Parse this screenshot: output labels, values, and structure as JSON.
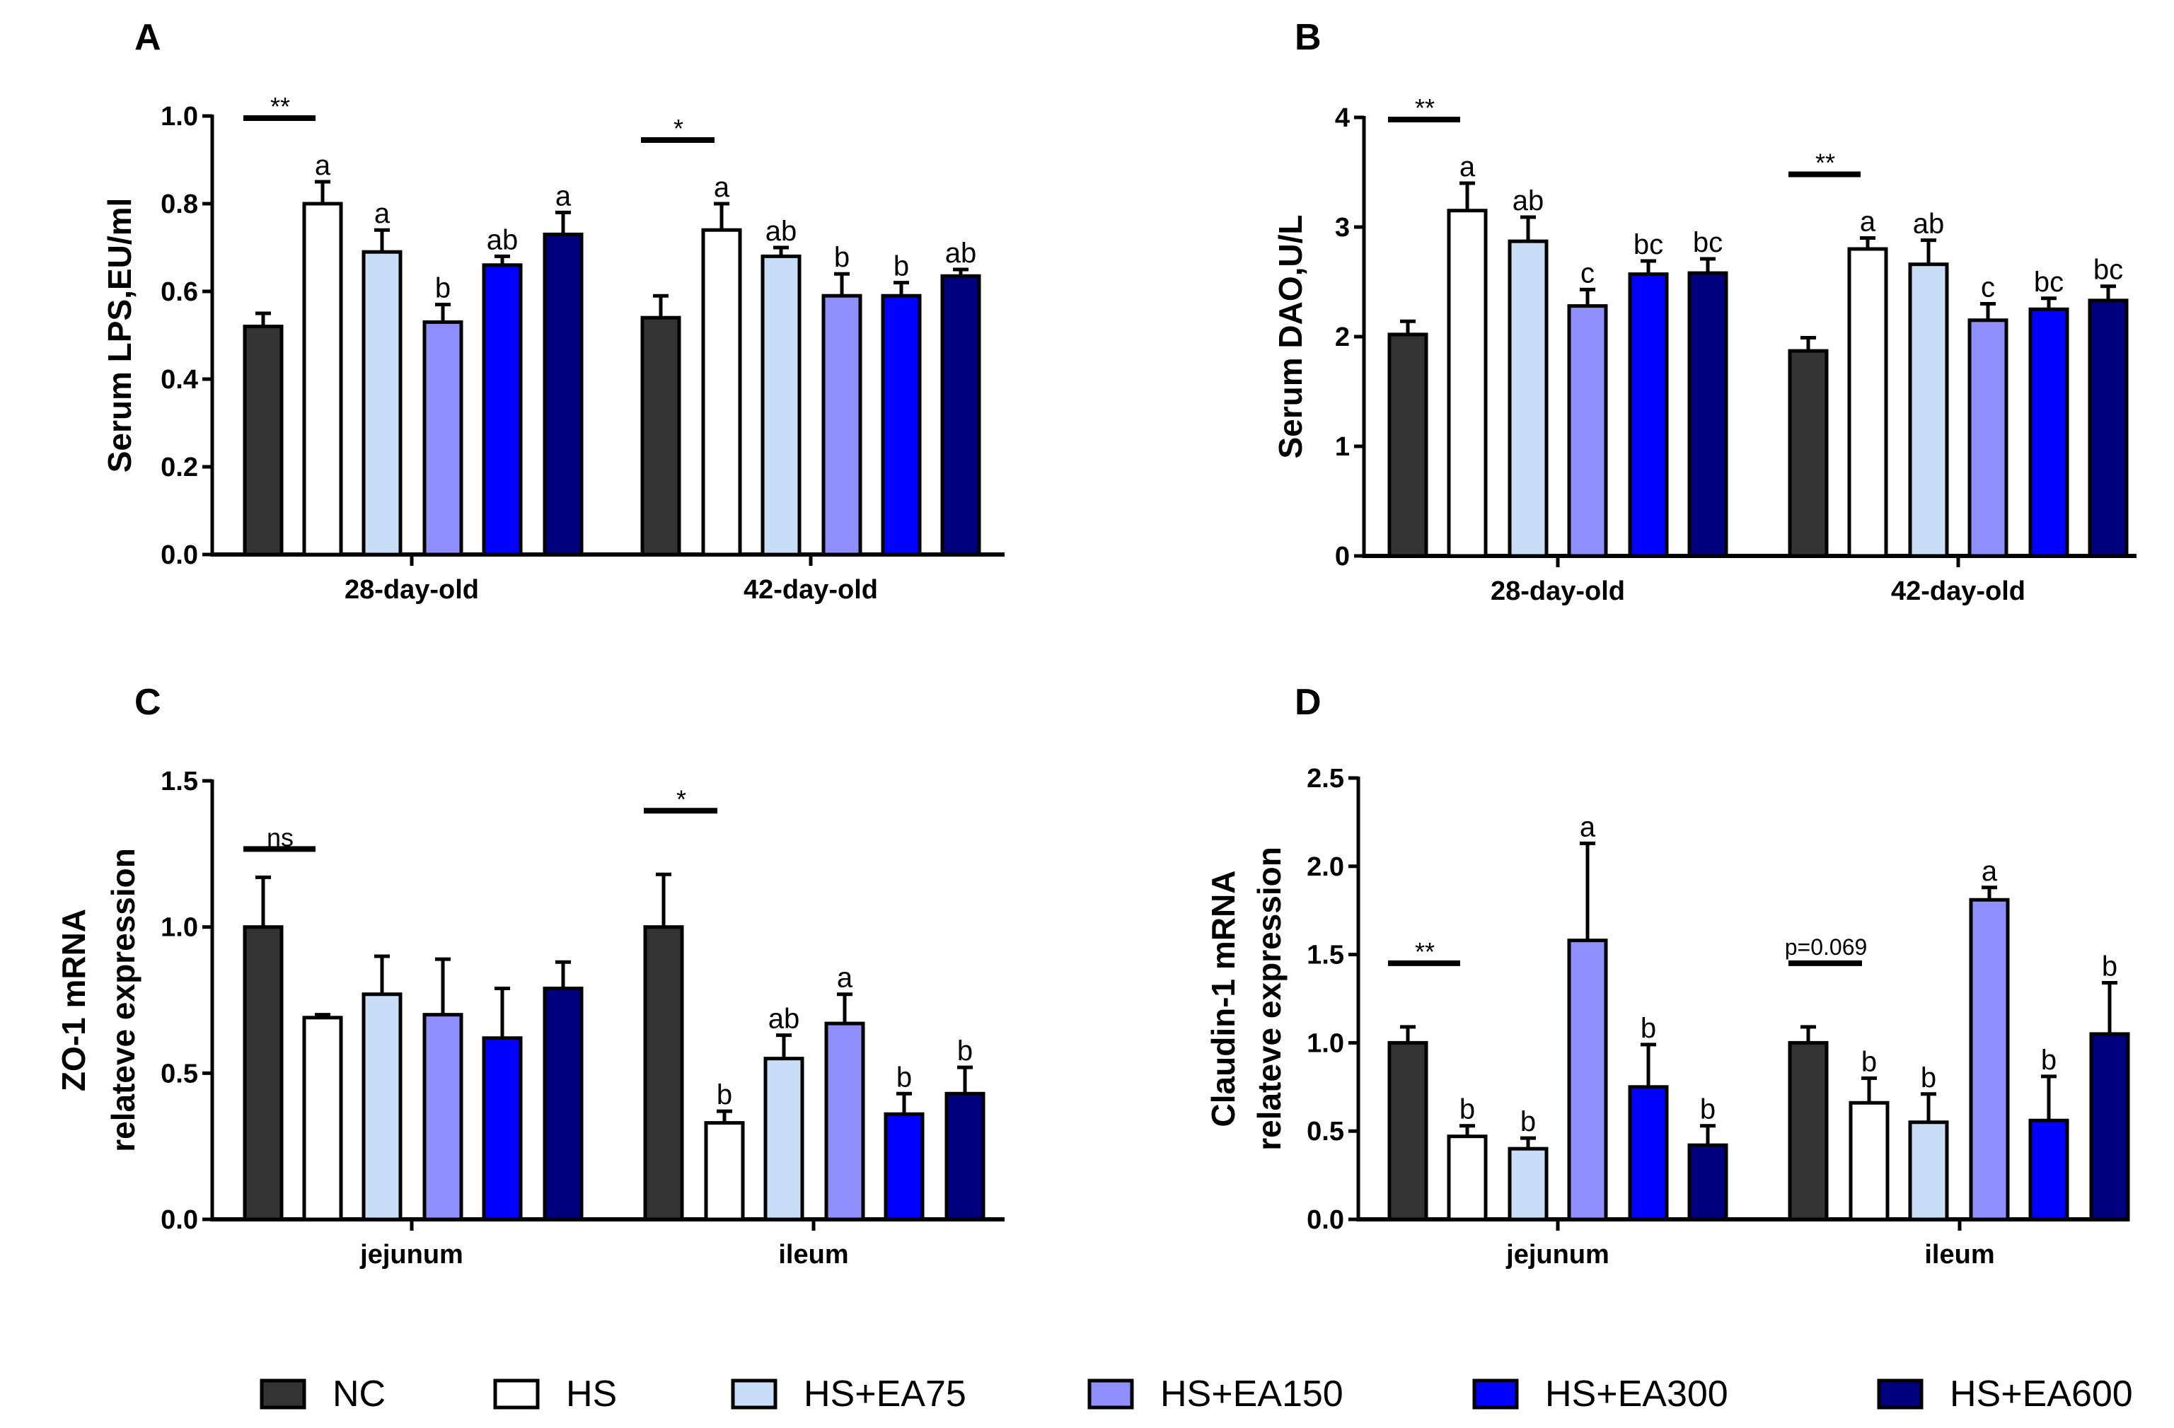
{
  "legend": [
    {
      "name": "NC",
      "color": "#333333"
    },
    {
      "name": "HS",
      "color": "#ffffff"
    },
    {
      "name": "HS+EA75",
      "color": "#c9ddf7"
    },
    {
      "name": "HS+EA150",
      "color": "#8f8ffe"
    },
    {
      "name": "HS+EA300",
      "color": "#0000ff"
    },
    {
      "name": "HS+EA600",
      "color": "#00007f"
    }
  ],
  "chart_data": [
    {
      "panel": "A",
      "type": "bar",
      "ylabel": [
        "Serum LPS,EU/ml"
      ],
      "ylim": [
        0,
        1.0
      ],
      "yticks": [
        "0.0",
        "0.2",
        "0.4",
        "0.6",
        "0.8",
        "1.0"
      ],
      "categories": [
        "28-day-old",
        "42-day-old"
      ],
      "groups": [
        {
          "values": [
            0.52,
            0.8,
            0.69,
            0.53,
            0.66,
            0.73
          ],
          "errors": [
            0.03,
            0.05,
            0.05,
            0.04,
            0.02,
            0.05
          ],
          "letters": [
            "",
            "a",
            "a",
            "b",
            "ab",
            "a"
          ],
          "sig": "**"
        },
        {
          "values": [
            0.54,
            0.74,
            0.68,
            0.59,
            0.59,
            0.635
          ],
          "errors": [
            0.05,
            0.06,
            0.02,
            0.05,
            0.03,
            0.015
          ],
          "letters": [
            "",
            "a",
            "ab",
            "b",
            "b",
            "ab"
          ],
          "sig": "*"
        }
      ]
    },
    {
      "panel": "B",
      "type": "bar",
      "ylabel": [
        "Serum DAO,U/L"
      ],
      "ylim": [
        0,
        4
      ],
      "yticks": [
        "0",
        "1",
        "2",
        "3",
        "4"
      ],
      "categories": [
        "28-day-old",
        "42-day-old"
      ],
      "groups": [
        {
          "values": [
            2.02,
            3.15,
            2.87,
            2.28,
            2.57,
            2.58
          ],
          "errors": [
            0.12,
            0.25,
            0.22,
            0.15,
            0.12,
            0.13
          ],
          "letters": [
            "",
            "a",
            "ab",
            "c",
            "bc",
            "bc"
          ],
          "sig": "**"
        },
        {
          "values": [
            1.87,
            2.8,
            2.66,
            2.15,
            2.25,
            2.33
          ],
          "errors": [
            0.12,
            0.1,
            0.22,
            0.15,
            0.1,
            0.13
          ],
          "letters": [
            "",
            "a",
            "ab",
            "c",
            "bc",
            "bc"
          ],
          "sig": "**"
        }
      ]
    },
    {
      "panel": "C",
      "type": "bar",
      "ylabel": [
        "ZO-1 mRNA",
        "relateve expression"
      ],
      "ylim": [
        0,
        1.5
      ],
      "yticks": [
        "0.0",
        "0.5",
        "1.0",
        "1.5"
      ],
      "categories": [
        "jejunum",
        "ileum"
      ],
      "groups": [
        {
          "values": [
            1.0,
            0.69,
            0.77,
            0.7,
            0.62,
            0.79
          ],
          "errors": [
            0.17,
            0.01,
            0.13,
            0.19,
            0.17,
            0.09
          ],
          "letters": [
            "",
            "",
            "",
            "",
            "",
            ""
          ],
          "sig": "ns"
        },
        {
          "values": [
            1.0,
            0.33,
            0.55,
            0.67,
            0.36,
            0.43
          ],
          "errors": [
            0.18,
            0.04,
            0.08,
            0.1,
            0.07,
            0.09
          ],
          "letters": [
            "",
            "b",
            "ab",
            "a",
            "b",
            "b"
          ],
          "sig": "*"
        }
      ]
    },
    {
      "panel": "D",
      "type": "bar",
      "ylabel": [
        "Claudin-1 mRNA",
        "relateve expression"
      ],
      "ylim": [
        0,
        2.5
      ],
      "yticks": [
        "0.0",
        "0.5",
        "1.0",
        "1.5",
        "2.0",
        "2.5"
      ],
      "categories": [
        "jejunum",
        "ileum"
      ],
      "groups": [
        {
          "values": [
            1.0,
            0.47,
            0.4,
            1.58,
            0.75,
            0.42
          ],
          "errors": [
            0.09,
            0.06,
            0.06,
            0.55,
            0.24,
            0.11
          ],
          "letters": [
            "",
            "b",
            "b",
            "a",
            "b",
            "b"
          ],
          "sig": "**"
        },
        {
          "values": [
            1.0,
            0.66,
            0.55,
            1.81,
            0.56,
            1.05
          ],
          "errors": [
            0.09,
            0.14,
            0.16,
            0.07,
            0.25,
            0.29
          ],
          "letters": [
            "",
            "b",
            "b",
            "a",
            "b",
            "b"
          ],
          "sig": "p=0.069"
        }
      ]
    }
  ]
}
